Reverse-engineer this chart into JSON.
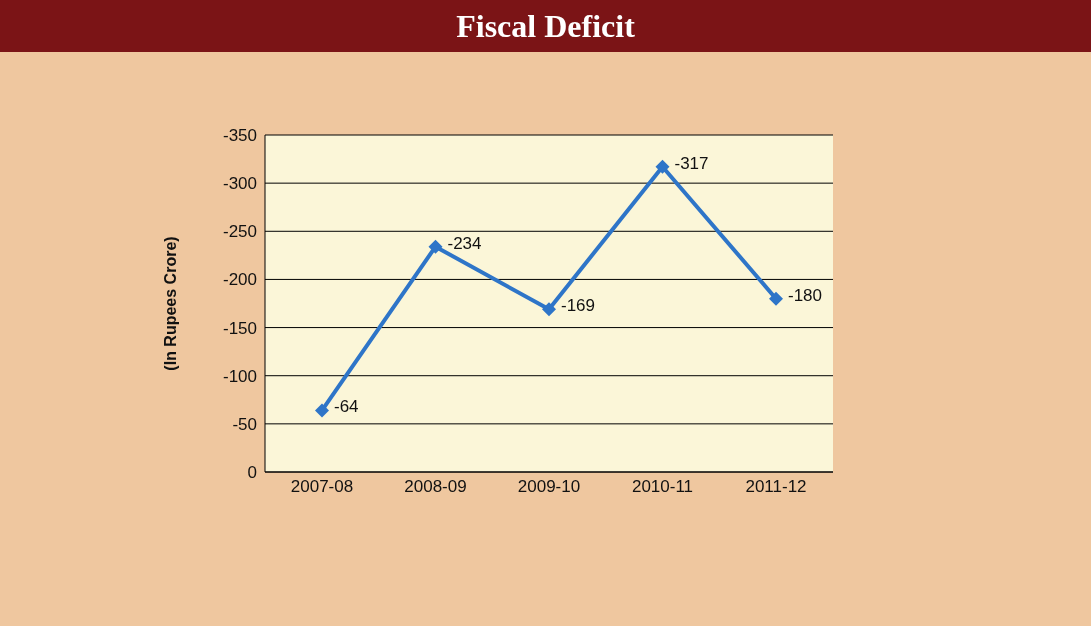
{
  "chart_data": {
    "type": "line",
    "title": "Fiscal Deficit",
    "ylabel": "(In Rupees Crore)",
    "categories": [
      "2007-08",
      "2008-09",
      "2009-10",
      "2010-11",
      "2011-12"
    ],
    "series": [
      {
        "color": "#2e75c8",
        "values": [
          -64,
          -234,
          -169,
          -317,
          -180
        ]
      }
    ],
    "ylim": [
      0,
      -350
    ],
    "yticks": [
      0,
      -50,
      -100,
      -150,
      -200,
      -250,
      -300,
      -350
    ],
    "grid": "y",
    "marker": "diamond",
    "line_style": "solid",
    "data_labels": true
  }
}
